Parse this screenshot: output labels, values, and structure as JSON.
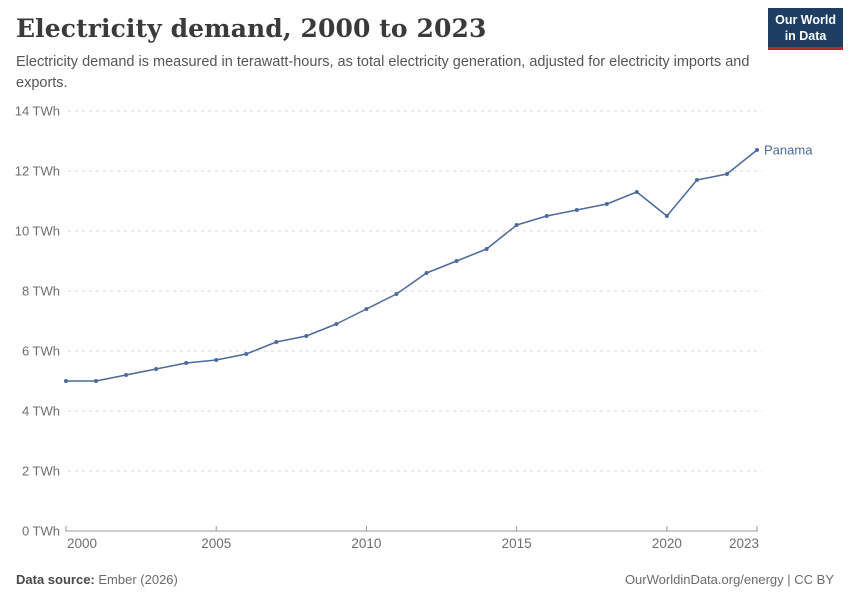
{
  "header": {
    "title": "Electricity demand, 2000 to 2023",
    "subtitle": "Electricity demand is measured in terawatt-hours, as total electricity generation, adjusted for electricity imports and exports.",
    "logo": {
      "line1": "Our World",
      "line2": "in Data"
    }
  },
  "chart_data": {
    "type": "line",
    "title": "Electricity demand, 2000 to 2023",
    "unit": "TWh",
    "xlim": [
      2000,
      2023
    ],
    "ylim": [
      0,
      14
    ],
    "x_ticks": [
      2000,
      2005,
      2010,
      2015,
      2020,
      2023
    ],
    "y_ticks": [
      0,
      2,
      4,
      6,
      8,
      10,
      12,
      14
    ],
    "grid": "horizontal-dashed",
    "legend_position": "end-of-line-label",
    "series": [
      {
        "name": "Panama",
        "color": "#4C6A9C",
        "x": [
          2000,
          2001,
          2002,
          2003,
          2004,
          2005,
          2006,
          2007,
          2008,
          2009,
          2010,
          2011,
          2012,
          2013,
          2014,
          2015,
          2016,
          2017,
          2018,
          2019,
          2020,
          2021,
          2022,
          2023
        ],
        "values": [
          5.0,
          5.0,
          5.2,
          5.4,
          5.6,
          5.7,
          5.9,
          6.3,
          6.5,
          6.9,
          7.4,
          7.9,
          8.6,
          9.0,
          9.4,
          10.2,
          10.5,
          10.7,
          10.9,
          11.3,
          10.5,
          11.7,
          11.9,
          12.7
        ]
      }
    ]
  },
  "colors": {
    "series_blue": "#4C6A9C",
    "grid": "#dadada",
    "axis": "#9a9a9a",
    "tick_label": "#6e6e6e",
    "logo_bg": "#1d3d63",
    "logo_stripe": "#b5292f"
  },
  "footer": {
    "source_label": "Data source:",
    "source_value": "Ember (2026)",
    "credit": "OurWorldinData.org/energy | CC BY"
  }
}
